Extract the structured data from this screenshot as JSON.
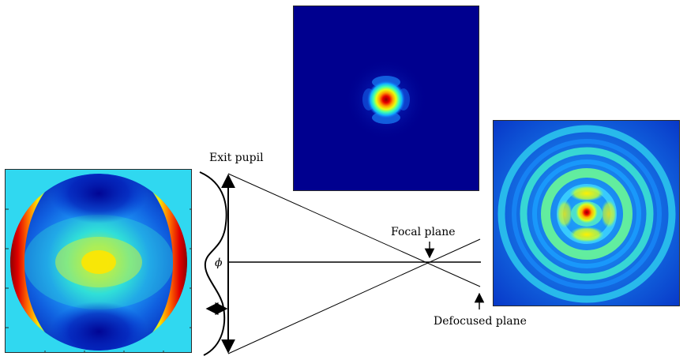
{
  "figure": {
    "labels": {
      "exit_pupil": "Exit pupil",
      "focal_plane": "Focal plane",
      "defocused_plane": "Defocused plane",
      "phase_symbol": "ϕ"
    },
    "colors": {
      "jet_dark_blue": "#00008f",
      "jet_blue": "#0050ff",
      "jet_cyan": "#00e0ff",
      "jet_yellow": "#ffe600",
      "jet_red": "#e00000",
      "outside_aperture": "#30d8f0"
    }
  }
}
